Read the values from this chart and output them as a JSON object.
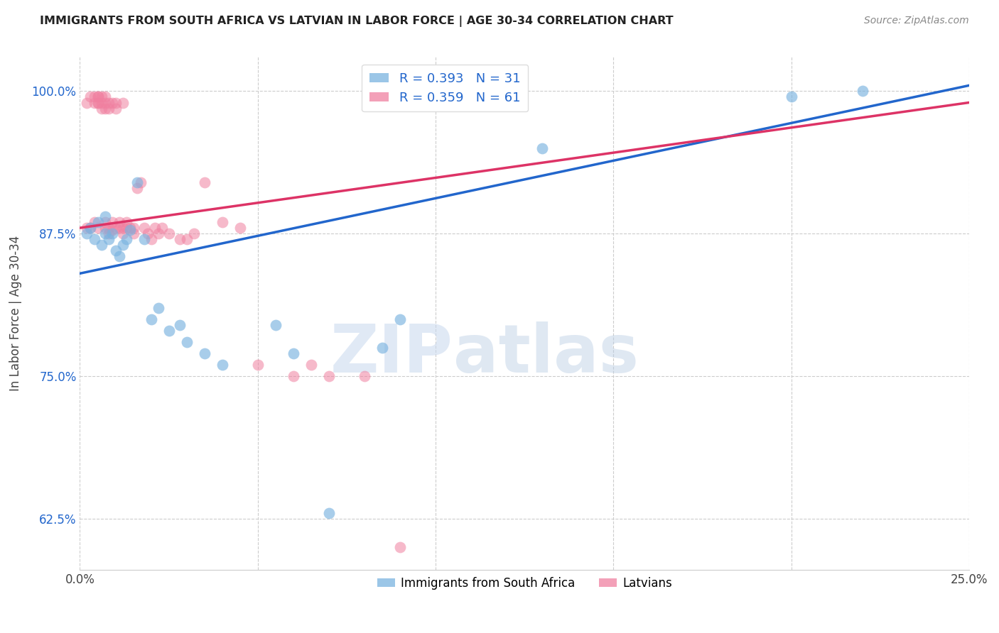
{
  "title": "IMMIGRANTS FROM SOUTH AFRICA VS LATVIAN IN LABOR FORCE | AGE 30-34 CORRELATION CHART",
  "source": "Source: ZipAtlas.com",
  "ylabel": "In Labor Force | Age 30-34",
  "xlim": [
    0.0,
    0.25
  ],
  "ylim": [
    0.58,
    1.03
  ],
  "xticks": [
    0.0,
    0.05,
    0.1,
    0.15,
    0.2,
    0.25
  ],
  "xticklabels": [
    "0.0%",
    "",
    "",
    "",
    "",
    "25.0%"
  ],
  "yticks": [
    0.625,
    0.75,
    0.875,
    1.0
  ],
  "yticklabels": [
    "62.5%",
    "75.0%",
    "87.5%",
    "100.0%"
  ],
  "blue_R": 0.393,
  "blue_N": 31,
  "pink_R": 0.359,
  "pink_N": 61,
  "blue_color": "#7ab3e0",
  "pink_color": "#f080a0",
  "blue_line_color": "#2266cc",
  "pink_line_color": "#dd3366",
  "legend_label_blue": "Immigrants from South Africa",
  "legend_label_pink": "Latvians",
  "watermark_left": "ZIP",
  "watermark_right": "atlas",
  "blue_x": [
    0.002,
    0.003,
    0.004,
    0.005,
    0.006,
    0.007,
    0.007,
    0.008,
    0.009,
    0.01,
    0.011,
    0.012,
    0.013,
    0.014,
    0.016,
    0.018,
    0.02,
    0.022,
    0.025,
    0.028,
    0.03,
    0.035,
    0.04,
    0.055,
    0.06,
    0.07,
    0.085,
    0.09,
    0.13,
    0.2,
    0.22
  ],
  "blue_y": [
    0.875,
    0.88,
    0.87,
    0.885,
    0.865,
    0.875,
    0.89,
    0.87,
    0.875,
    0.86,
    0.855,
    0.865,
    0.87,
    0.878,
    0.92,
    0.87,
    0.8,
    0.81,
    0.79,
    0.795,
    0.78,
    0.77,
    0.76,
    0.795,
    0.77,
    0.63,
    0.775,
    0.8,
    0.95,
    0.995,
    1.0
  ],
  "pink_x": [
    0.002,
    0.002,
    0.003,
    0.003,
    0.004,
    0.004,
    0.004,
    0.005,
    0.005,
    0.005,
    0.005,
    0.005,
    0.006,
    0.006,
    0.006,
    0.007,
    0.007,
    0.007,
    0.007,
    0.007,
    0.008,
    0.008,
    0.008,
    0.008,
    0.009,
    0.009,
    0.009,
    0.01,
    0.01,
    0.01,
    0.011,
    0.011,
    0.012,
    0.012,
    0.012,
    0.013,
    0.013,
    0.014,
    0.015,
    0.015,
    0.016,
    0.017,
    0.018,
    0.019,
    0.02,
    0.021,
    0.022,
    0.023,
    0.025,
    0.028,
    0.03,
    0.032,
    0.035,
    0.04,
    0.045,
    0.05,
    0.06,
    0.065,
    0.07,
    0.08,
    0.09
  ],
  "pink_y": [
    0.88,
    0.99,
    0.88,
    0.995,
    0.885,
    0.99,
    0.995,
    0.99,
    0.995,
    0.88,
    0.99,
    0.995,
    0.985,
    0.99,
    0.995,
    0.985,
    0.99,
    0.995,
    0.88,
    0.885,
    0.985,
    0.99,
    0.875,
    0.88,
    0.885,
    0.878,
    0.99,
    0.88,
    0.985,
    0.99,
    0.88,
    0.885,
    0.88,
    0.875,
    0.99,
    0.88,
    0.885,
    0.88,
    0.875,
    0.88,
    0.915,
    0.92,
    0.88,
    0.875,
    0.87,
    0.88,
    0.875,
    0.88,
    0.875,
    0.87,
    0.87,
    0.875,
    0.92,
    0.885,
    0.88,
    0.76,
    0.75,
    0.76,
    0.75,
    0.75,
    0.6
  ],
  "blue_trend_x": [
    0.0,
    0.25
  ],
  "blue_trend_y": [
    0.84,
    1.005
  ],
  "pink_trend_x": [
    0.0,
    0.25
  ],
  "pink_trend_y": [
    0.88,
    0.99
  ]
}
